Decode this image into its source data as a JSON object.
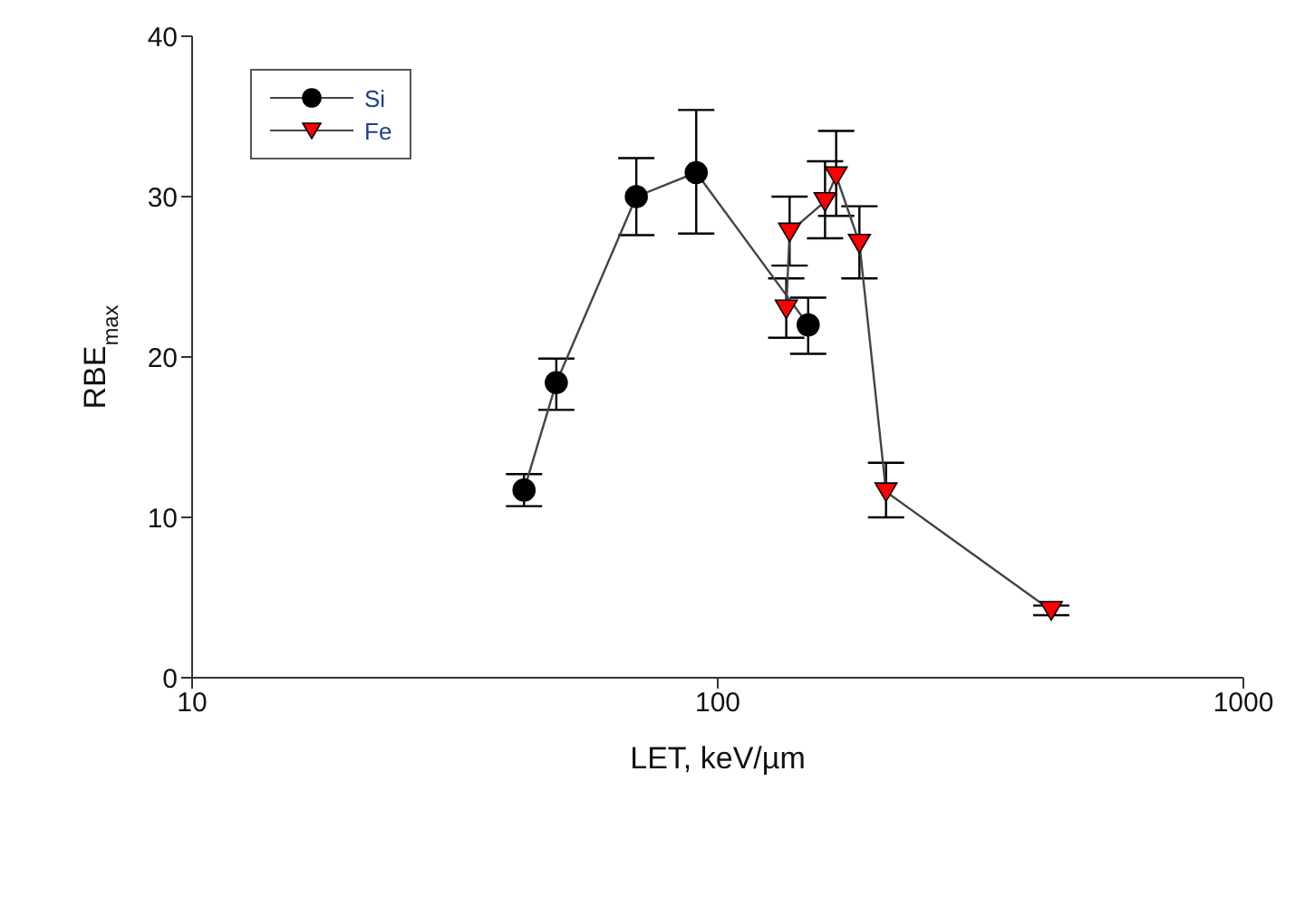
{
  "chart_data": {
    "type": "line",
    "xlabel": "LET, keV/µm",
    "ylabel": "RBE$_{max}$",
    "log": "x",
    "xlim": [
      10,
      1000
    ],
    "xticks": [
      10,
      100,
      1000
    ],
    "ylim": [
      0,
      40
    ],
    "yticks": [
      0,
      10,
      20,
      30,
      40
    ],
    "legend": "top left",
    "line_style": "solid",
    "series": [
      {
        "name": "Si",
        "color": "#000000",
        "marker": "circle",
        "x": [
          42.8,
          49.3,
          70,
          91,
          148.6
        ],
        "values": [
          11.7,
          18.4,
          30.0,
          31.5,
          22.0
        ],
        "errors": [
          [
            10.7,
            12.7
          ],
          [
            16.7,
            19.9
          ],
          [
            27.6,
            32.4
          ],
          [
            27.7,
            35.4
          ],
          [
            20.2,
            23.7
          ]
        ]
      },
      {
        "name": "Fe",
        "color": "#ff0000",
        "marker": "triangle",
        "x": [
          135,
          137,
          160,
          168,
          186,
          209,
          431
        ],
        "values": [
          23.0,
          27.8,
          29.7,
          31.3,
          27.1,
          11.6,
          4.2
        ],
        "errors": [
          [
            21.2,
            24.9
          ],
          [
            25.7,
            30.0
          ],
          [
            27.4,
            32.2
          ],
          [
            28.8,
            34.1
          ],
          [
            24.9,
            29.4
          ],
          [
            10.0,
            13.4
          ],
          [
            3.9,
            4.5
          ]
        ]
      }
    ]
  }
}
